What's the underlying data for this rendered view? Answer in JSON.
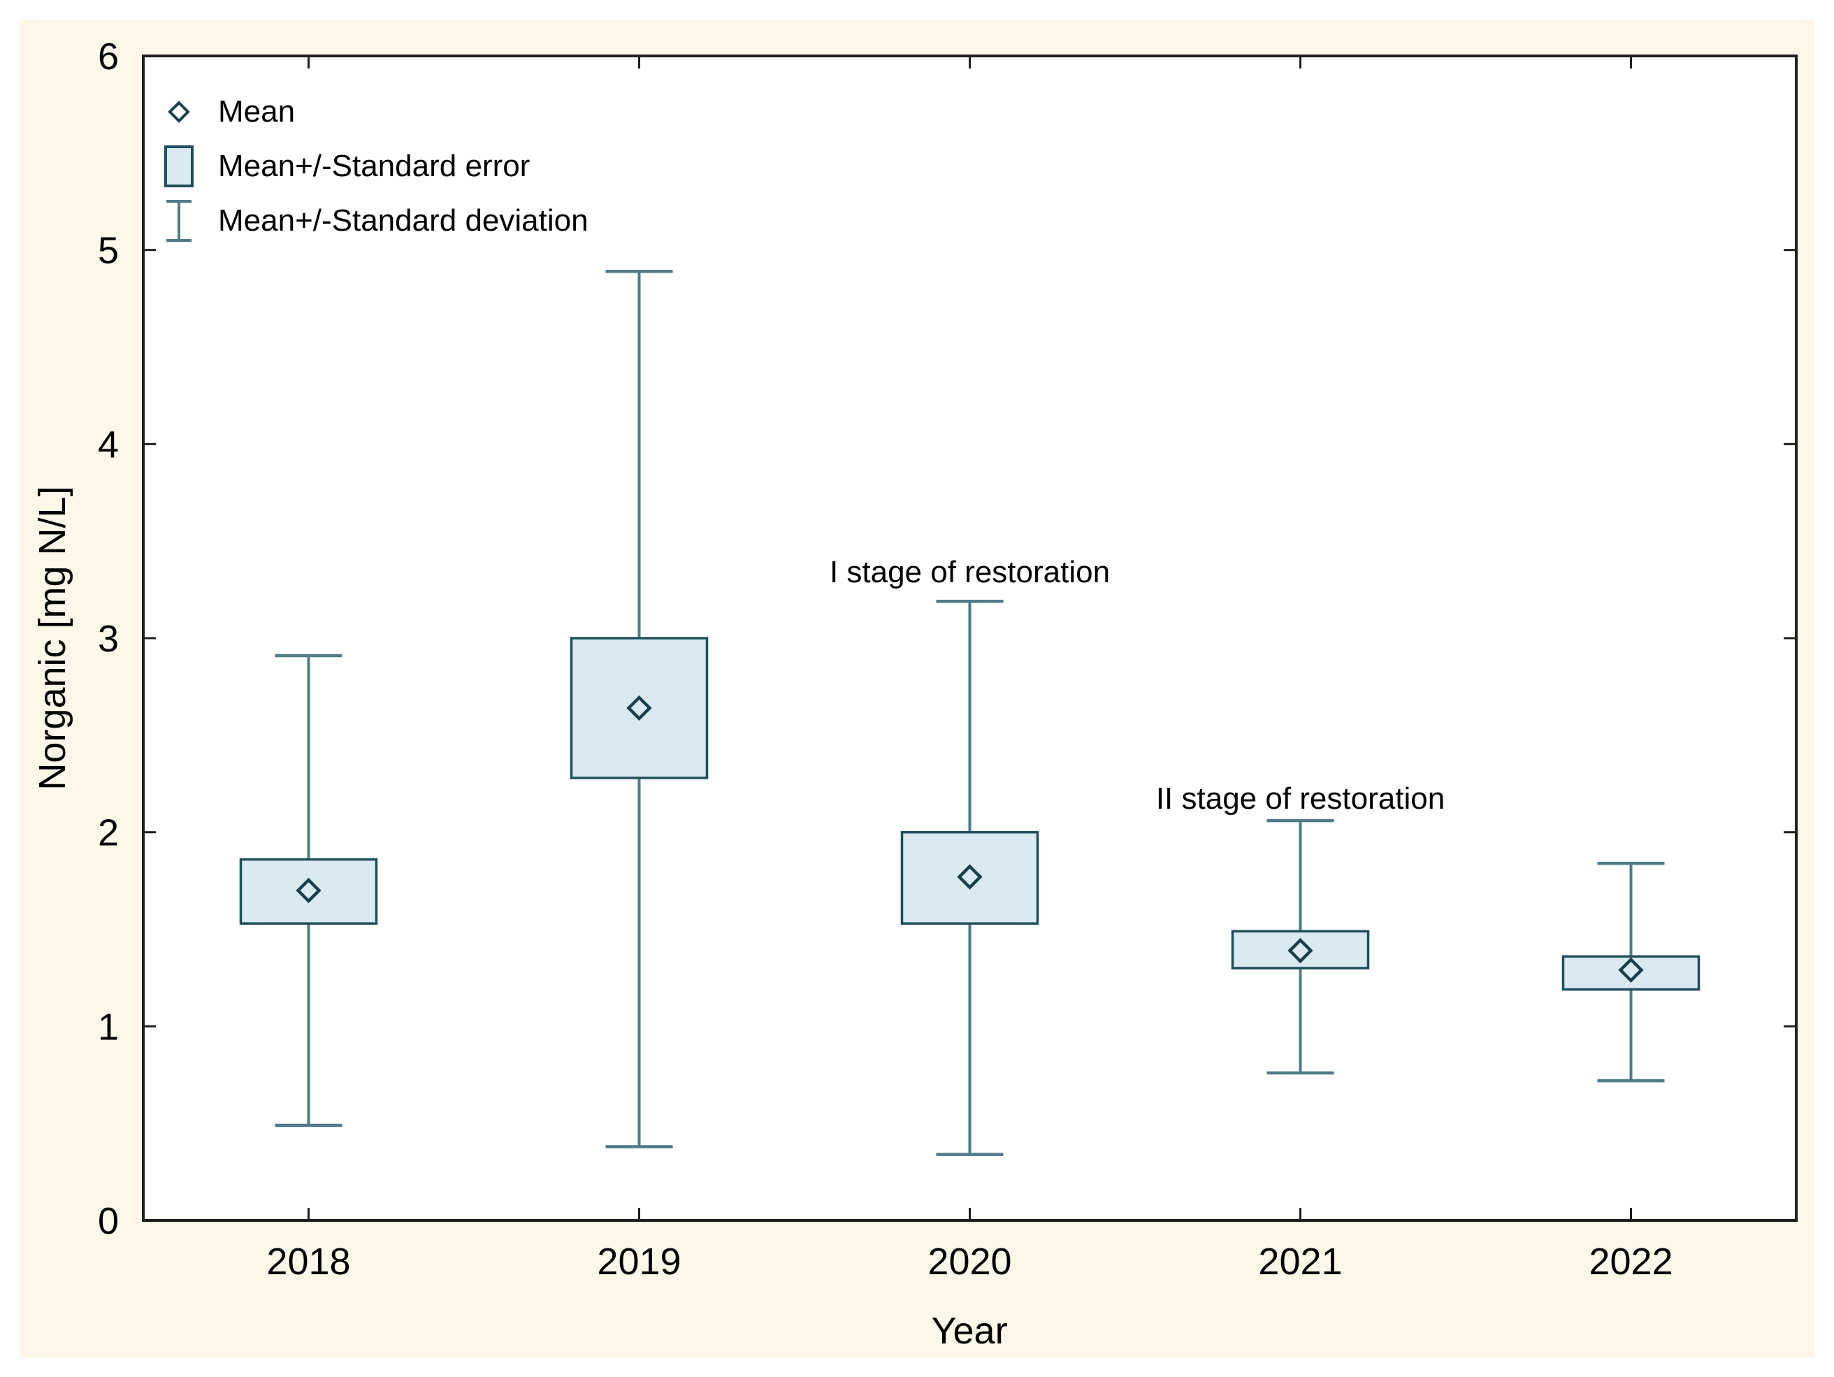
{
  "figure": {
    "background_color": "#fcf7e8",
    "plot_background_color": "#ffffff",
    "frame_color": "#1f1f1f"
  },
  "legend": {
    "items": [
      {
        "marker": "diamond",
        "label": "Mean"
      },
      {
        "marker": "box",
        "label": "Mean+/-Standard error"
      },
      {
        "marker": "whisker",
        "label": "Mean+/-Standard deviation"
      }
    ]
  },
  "annotations": [
    {
      "text": "I stage of restoration",
      "category_index": 2,
      "value": 3.34
    },
    {
      "text": "II stage of restoration",
      "category_index": 3,
      "value": 2.17
    }
  ],
  "chart_data": {
    "type": "boxplot",
    "subtype": "mean-se-sd",
    "title": "",
    "xlabel": "Year",
    "ylabel": "Norganic [mg N/L]",
    "ylim": [
      0,
      6
    ],
    "yticks": [
      0,
      1,
      2,
      3,
      4,
      5,
      6
    ],
    "grid": false,
    "legend_position": "top-left-inside",
    "categories": [
      "2018",
      "2019",
      "2020",
      "2021",
      "2022"
    ],
    "series": [
      {
        "category": "2018",
        "mean": 1.7,
        "se_low": 1.53,
        "se_high": 1.86,
        "sd_low": 0.49,
        "sd_high": 2.91
      },
      {
        "category": "2019",
        "mean": 2.64,
        "se_low": 2.28,
        "se_high": 3.0,
        "sd_low": 0.38,
        "sd_high": 4.89
      },
      {
        "category": "2020",
        "mean": 1.77,
        "se_low": 1.53,
        "se_high": 2.0,
        "sd_low": 0.34,
        "sd_high": 3.19
      },
      {
        "category": "2021",
        "mean": 1.39,
        "se_low": 1.3,
        "se_high": 1.49,
        "sd_low": 0.76,
        "sd_high": 2.06
      },
      {
        "category": "2022",
        "mean": 1.29,
        "se_low": 1.19,
        "se_high": 1.36,
        "sd_low": 0.72,
        "sd_high": 1.84
      }
    ],
    "colors": {
      "box_fill": "#dbeaf0",
      "box_border": "#1f4e5c",
      "whisker": "#4f7b88",
      "diamond": "#17404f",
      "axis": "#1f1f1f",
      "text": "#000000"
    }
  }
}
